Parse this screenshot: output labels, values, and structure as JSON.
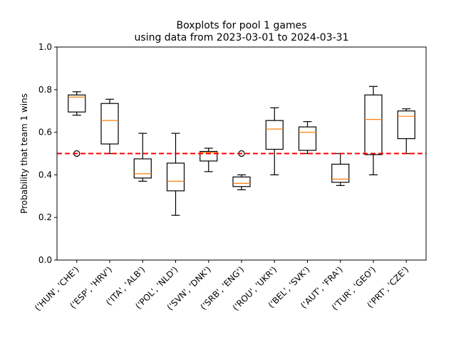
{
  "chart_data": {
    "type": "boxplot",
    "title_line1": "Boxplots for pool 1 games",
    "title_line2": "using data from 2023-03-01 to 2024-03-31",
    "xlabel": "",
    "ylabel": "Probability that team 1 wins",
    "ylim": [
      0.0,
      1.0
    ],
    "yticks": [
      0.0,
      0.2,
      0.4,
      0.6,
      0.8,
      1.0
    ],
    "ytick_labels": [
      "0.0",
      "0.2",
      "0.4",
      "0.6",
      "0.8",
      "1.0"
    ],
    "reference_line": {
      "y": 0.5,
      "style": "dashed",
      "color": "#ff0000"
    },
    "box_color": "#000000",
    "median_color": "#ff7f0e",
    "grid": false,
    "categories": [
      "('HUN', 'CHE')",
      "('ESP', 'HRV')",
      "('ITA', 'ALB')",
      "('POL', 'NLD')",
      "('SVN', 'DNK')",
      "('SRB', 'ENG')",
      "('ROU', 'UKR')",
      "('BEL', 'SVK')",
      "('AUT', 'FRA')",
      "('TUR', 'GEO')",
      "('PRT', 'CZE')"
    ],
    "boxes": [
      {
        "whislo": 0.68,
        "q1": 0.695,
        "med": 0.765,
        "q3": 0.775,
        "whishi": 0.79,
        "fliers": [
          0.5
        ]
      },
      {
        "whislo": 0.5,
        "q1": 0.545,
        "med": 0.655,
        "q3": 0.735,
        "whishi": 0.755,
        "fliers": []
      },
      {
        "whislo": 0.37,
        "q1": 0.385,
        "med": 0.405,
        "q3": 0.475,
        "whishi": 0.595,
        "fliers": []
      },
      {
        "whislo": 0.21,
        "q1": 0.325,
        "med": 0.37,
        "q3": 0.455,
        "whishi": 0.595,
        "fliers": []
      },
      {
        "whislo": 0.415,
        "q1": 0.465,
        "med": 0.505,
        "q3": 0.51,
        "whishi": 0.525,
        "fliers": []
      },
      {
        "whislo": 0.33,
        "q1": 0.345,
        "med": 0.36,
        "q3": 0.39,
        "whishi": 0.4,
        "fliers": [
          0.5
        ]
      },
      {
        "whislo": 0.4,
        "q1": 0.52,
        "med": 0.615,
        "q3": 0.655,
        "whishi": 0.715,
        "fliers": []
      },
      {
        "whislo": 0.5,
        "q1": 0.515,
        "med": 0.6,
        "q3": 0.625,
        "whishi": 0.65,
        "fliers": []
      },
      {
        "whislo": 0.35,
        "q1": 0.365,
        "med": 0.38,
        "q3": 0.45,
        "whishi": 0.5,
        "fliers": []
      },
      {
        "whislo": 0.4,
        "q1": 0.495,
        "med": 0.66,
        "q3": 0.775,
        "whishi": 0.815,
        "fliers": []
      },
      {
        "whislo": 0.5,
        "q1": 0.57,
        "med": 0.675,
        "q3": 0.7,
        "whishi": 0.71,
        "fliers": []
      }
    ]
  }
}
